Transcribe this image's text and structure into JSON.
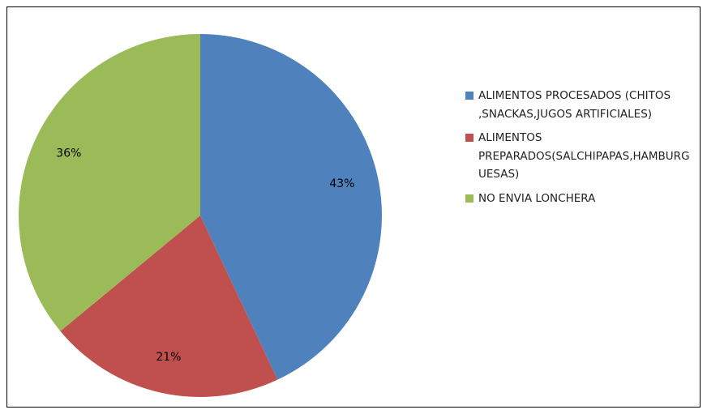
{
  "chart_data": {
    "type": "pie",
    "categories": [
      "ALIMENTOS PROCESADOS (CHITOS ,SNACKAS,JUGOS ARTIFICIALES)",
      "ALIMENTOS PREPARADOS(SALCHIPAPAS,HAMBURGUESAS)",
      "NO ENVIA LONCHERA"
    ],
    "values": [
      43,
      21,
      36
    ],
    "value_labels": [
      "43%",
      "21%",
      "36%"
    ],
    "colors": [
      "#4f81bd",
      "#c0504d",
      "#9bbb59"
    ],
    "legend": "right"
  }
}
